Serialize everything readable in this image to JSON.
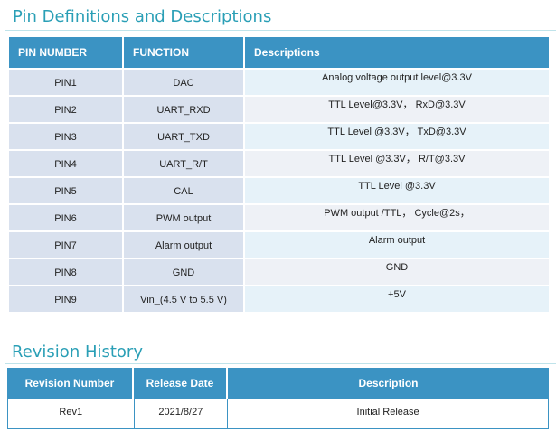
{
  "pin_section": {
    "title": "Pin Definitions and Descriptions",
    "headers": [
      "PIN  NUMBER",
      "FUNCTION",
      "Descriptions"
    ],
    "rows": [
      {
        "pin": "PIN1",
        "function": "DAC",
        "description": "Analog voltage output level@3.3V"
      },
      {
        "pin": "PIN2",
        "function": "UART_RXD",
        "description": "TTL  Level@3.3V，  RxD@3.3V"
      },
      {
        "pin": "PIN3",
        "function": "UART_TXD",
        "description": "TTL Level @3.3V，  TxD@3.3V"
      },
      {
        "pin": "PIN4",
        "function": "UART_R/T",
        "description": "TTL Level @3.3V，  R/T@3.3V"
      },
      {
        "pin": "PIN5",
        "function": "CAL",
        "description": "TTL Level @3.3V"
      },
      {
        "pin": "PIN6",
        "function": "PWM output",
        "description": "PWM output /TTL，  Cycle@2s，"
      },
      {
        "pin": "PIN7",
        "function": "Alarm output",
        "description": "Alarm output"
      },
      {
        "pin": "PIN8",
        "function": "GND",
        "description": "GND"
      },
      {
        "pin": "PIN9",
        "function": "Vin_(4.5 V to 5.5 V)",
        "description": "+5V"
      }
    ]
  },
  "revision_section": {
    "title": "Revision History",
    "headers": [
      "Revision Number",
      "Release Date",
      "Description"
    ],
    "rows": [
      {
        "revision": "Rev1",
        "date": "2021/8/27",
        "description": "Initial Release"
      }
    ]
  },
  "colors": {
    "title": "#2a9fb6",
    "header_bg": "#3b93c3",
    "row_bg": "#d9e1ee",
    "desc_bg_alt": "#e6f2f9"
  }
}
